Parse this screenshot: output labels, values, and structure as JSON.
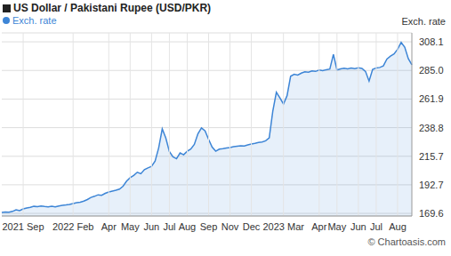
{
  "chart_data": {
    "type": "area",
    "title": "US Dollar / Pakistani Rupee (USD/PKR)",
    "y_label": "Exch. rate",
    "source": "© Chartoasis.com",
    "legend": "top left",
    "grid": true,
    "categories": [
      null,
      null,
      null,
      null,
      null,
      null,
      "2021 Sep",
      null,
      null,
      null,
      null,
      null,
      null,
      null,
      null,
      null,
      null,
      null,
      null,
      null,
      "2022 Feb",
      null,
      null,
      null,
      null,
      null,
      null,
      null,
      null,
      null,
      "Apr",
      null,
      null,
      null,
      null,
      null,
      "May",
      null,
      null,
      null,
      null,
      null,
      "Jun",
      null,
      null,
      null,
      null,
      "Jul",
      null,
      null,
      null,
      null,
      "Aug",
      null,
      null,
      null,
      null,
      null,
      "Sep",
      null,
      null,
      null,
      null,
      null,
      "Nov",
      null,
      null,
      null,
      null,
      null,
      "Dec",
      null,
      null,
      null,
      null,
      null,
      null,
      null,
      null,
      "2023 Mar",
      null,
      null,
      null,
      null,
      null,
      null,
      null,
      null,
      null,
      "Apr",
      null,
      null,
      null,
      null,
      "May",
      null,
      null,
      null,
      null,
      null,
      "Jun",
      null,
      null,
      null,
      null,
      "Jul",
      null,
      null,
      null,
      null,
      null,
      "Aug",
      null,
      null,
      null,
      null
    ],
    "series": [
      {
        "name": "Exch. rate",
        "color": "#3d85d6",
        "values": [
          170.4,
          170.8,
          170.5,
          171.2,
          172.5,
          171.8,
          173.2,
          174.0,
          174.5,
          175.3,
          175.1,
          175.6,
          175.2,
          174.9,
          175.4,
          174.8,
          175.5,
          176.1,
          176.4,
          176.8,
          177.5,
          178.2,
          178.6,
          179.5,
          180.8,
          182.5,
          183.4,
          184.6,
          184.2,
          185.8,
          186.9,
          187.6,
          188.3,
          189.2,
          191.5,
          195.6,
          198.4,
          200.2,
          202.8,
          201.6,
          204.9,
          206.3,
          207.5,
          211.8,
          222.5,
          237.8,
          230.4,
          219.6,
          215.2,
          213.7,
          218.4,
          216.9,
          219.8,
          221.6,
          225.3,
          233.8,
          238.6,
          236.2,
          229.4,
          223.1,
          219.8,
          221.5,
          221.9,
          222.4,
          222.8,
          223.5,
          223.9,
          224.2,
          224.0,
          224.9,
          225.6,
          226.1,
          226.8,
          227.3,
          228.2,
          230.5,
          252.1,
          267.4,
          262.8,
          257.9,
          264.6,
          280.3,
          281.9,
          281.2,
          282.8,
          283.9,
          283.5,
          284.6,
          284.2,
          285.3,
          284.8,
          285.6,
          286.1,
          298.0,
          285.4,
          286.3,
          286.8,
          286.2,
          286.9,
          286.5,
          287.1,
          286.6,
          284.2,
          276.4,
          285.8,
          286.9,
          287.4,
          288.6,
          294.2,
          296.5,
          298.3,
          302.1,
          307.6,
          303.8,
          294.5,
          289.6
        ]
      }
    ],
    "ylim": [
      167.5,
      315.3
    ],
    "yticks": [
      169.6,
      192.7,
      215.7,
      238.8,
      261.9,
      {
        "value": 285,
        "label": "285.0"
      },
      308.1
    ]
  }
}
